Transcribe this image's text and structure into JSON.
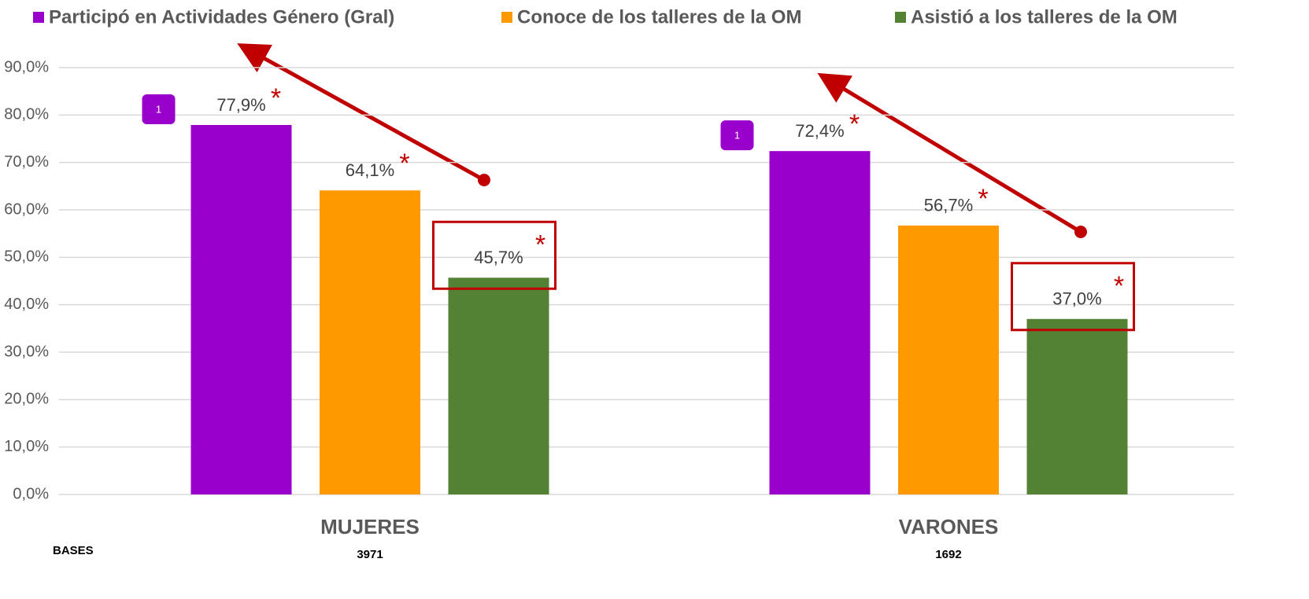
{
  "chart_data": {
    "type": "bar",
    "categories": [
      "MUJERES",
      "VARONES"
    ],
    "series": [
      {
        "name": "Participó en Actividades Género (Gral)",
        "color": "#9900cc",
        "values": [
          77.9,
          72.4
        ],
        "value_labels": [
          "77,9%",
          "72,4%"
        ]
      },
      {
        "name": "Conoce de los talleres de la OM",
        "color": "#ff9900",
        "values": [
          64.1,
          56.7
        ],
        "value_labels": [
          "64,1%",
          "56,7%"
        ]
      },
      {
        "name": "Asistió a los talleres de la OM",
        "color": "#548235",
        "values": [
          45.7,
          37.0
        ],
        "value_labels": [
          "45,7%",
          "37,0%"
        ]
      }
    ],
    "ylim": [
      0,
      90
    ],
    "yticks": [
      {
        "value": 0,
        "label": "0,0%"
      },
      {
        "value": 10,
        "label": "10,0%"
      },
      {
        "value": 20,
        "label": "20,0%"
      },
      {
        "value": 30,
        "label": "30,0%"
      },
      {
        "value": 40,
        "label": "40,0%"
      },
      {
        "value": 50,
        "label": "50,0%"
      },
      {
        "value": 60,
        "label": "60,0%"
      },
      {
        "value": 70,
        "label": "70,0%"
      },
      {
        "value": 80,
        "label": "80,0%"
      },
      {
        "value": 90,
        "label": "90,0%"
      }
    ],
    "grid": true,
    "legend": "top",
    "asterisk": "*",
    "badge": "1",
    "bases_label": "BASES",
    "bases": [
      3971,
      1692
    ]
  }
}
